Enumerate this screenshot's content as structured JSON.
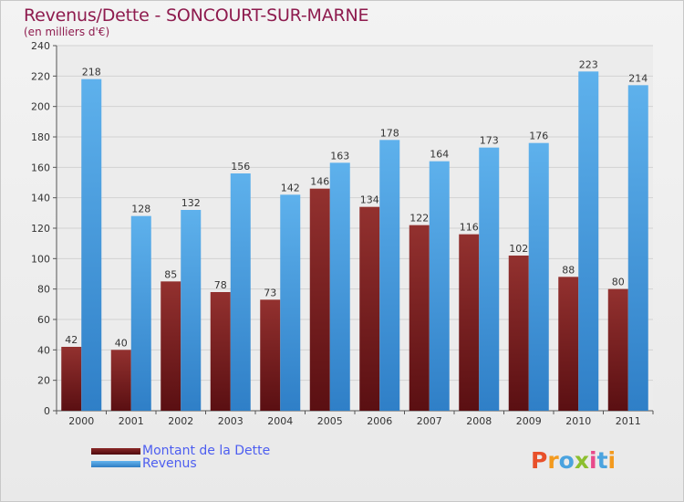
{
  "title": "Revenus/Dette - SONCOURT-SUR-MARNE",
  "subtitle": "(en milliers d'€)",
  "legend": {
    "debt_label": "Montant de la Dette",
    "revenue_label": "Revenus"
  },
  "logo": {
    "letters": [
      "P",
      "r",
      "o",
      "x",
      "i",
      "t",
      "i"
    ],
    "colors": [
      "#e8502a",
      "#f39a1e",
      "#4aa3df",
      "#8cbf2f",
      "#e84a8a",
      "#4aa3df",
      "#f39a1e"
    ]
  },
  "colors": {
    "debt": "#7a1f22",
    "revenue": "#4ea3e6",
    "title": "#8e1b4e",
    "legend_text": "#4d5ef0"
  },
  "chart_data": {
    "type": "bar",
    "title": "Revenus/Dette - SONCOURT-SUR-MARNE",
    "subtitle": "(en milliers d'€)",
    "categories": [
      "2000",
      "2001",
      "2002",
      "2003",
      "2004",
      "2005",
      "2006",
      "2007",
      "2008",
      "2009",
      "2010",
      "2011"
    ],
    "series": [
      {
        "name": "Montant de la Dette",
        "values": [
          42,
          40,
          85,
          78,
          73,
          146,
          134,
          122,
          116,
          102,
          88,
          80
        ]
      },
      {
        "name": "Revenus",
        "values": [
          218,
          128,
          132,
          156,
          142,
          163,
          178,
          164,
          173,
          176,
          223,
          214
        ]
      }
    ],
    "ylim": [
      0,
      240
    ],
    "yticks": [
      0,
      20,
      40,
      60,
      80,
      100,
      120,
      140,
      160,
      180,
      200,
      220,
      240
    ],
    "grid": true,
    "legend_position": "bottom-left"
  }
}
